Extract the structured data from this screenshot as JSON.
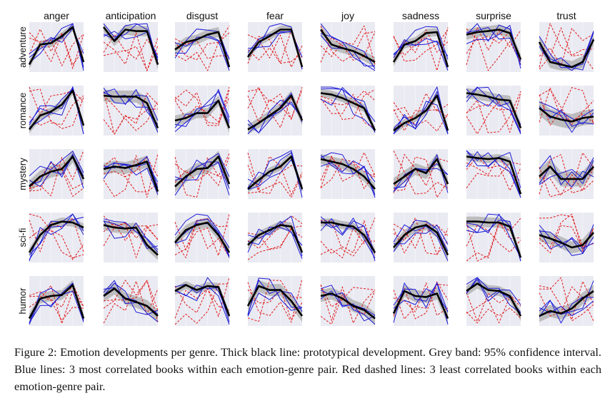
{
  "figure": {
    "caption": "Figure 2: Emotion developments per genre. Thick black line: prototypical development. Grey band: 95% confidence interval. Blue lines: 3 most correlated books within each emotion-genre pair. Red dashed lines: 3 least correlated books within each emotion-genre pair."
  },
  "colors": {
    "panel_bg": "#eaeaf2",
    "grid": "#ffffff",
    "prototype": "#000000",
    "band": "#a8a8a8",
    "most_correlated": "#1a1ad6",
    "least_correlated": "#e01a1a"
  },
  "chart_data": {
    "type": "line",
    "layout": "small-multiples",
    "columns": [
      "anger",
      "anticipation",
      "disgust",
      "fear",
      "joy",
      "sadness",
      "surprise",
      "trust"
    ],
    "rows": [
      "adventure",
      "romance",
      "mystery",
      "sci-fi",
      "humor"
    ],
    "x_points": 6,
    "ylim": [
      0,
      1
    ],
    "grid": true,
    "panels": {
      "adventure": {
        "anger": {
          "prototype": [
            0.15,
            0.55,
            0.58,
            0.72,
            0.9,
            0.2
          ],
          "ci": 0.08
        },
        "anticipation": {
          "prototype": [
            0.9,
            0.62,
            0.85,
            0.82,
            0.82,
            0.15
          ],
          "ci": 0.1
        },
        "disgust": {
          "prototype": [
            0.45,
            0.6,
            0.65,
            0.75,
            0.8,
            0.1
          ],
          "ci": 0.1
        },
        "fear": {
          "prototype": [
            0.3,
            0.6,
            0.72,
            0.85,
            0.85,
            0.1
          ],
          "ci": 0.08
        },
        "joy": {
          "prototype": [
            0.85,
            0.55,
            0.48,
            0.42,
            0.32,
            0.2
          ],
          "ci": 0.1
        },
        "sadness": {
          "prototype": [
            0.2,
            0.55,
            0.62,
            0.78,
            0.8,
            0.1
          ],
          "ci": 0.08
        },
        "surprise": {
          "prototype": [
            0.75,
            0.8,
            0.82,
            0.85,
            0.78,
            0.25
          ],
          "ci": 0.1
        },
        "trust": {
          "prototype": [
            0.6,
            0.2,
            0.15,
            0.1,
            0.2,
            0.65
          ],
          "ci": 0.12
        }
      },
      "romance": {
        "anger": {
          "prototype": [
            0.12,
            0.4,
            0.48,
            0.62,
            0.9,
            0.2
          ],
          "ci": 0.08
        },
        "anticipation": {
          "prototype": [
            0.8,
            0.78,
            0.78,
            0.78,
            0.65,
            0.15
          ],
          "ci": 0.12
        },
        "disgust": {
          "prototype": [
            0.3,
            0.35,
            0.45,
            0.45,
            0.7,
            0.15
          ],
          "ci": 0.1
        },
        "fear": {
          "prototype": [
            0.12,
            0.25,
            0.4,
            0.55,
            0.8,
            0.3
          ],
          "ci": 0.1
        },
        "joy": {
          "prototype": [
            0.85,
            0.82,
            0.75,
            0.65,
            0.55,
            0.1
          ],
          "ci": 0.08
        },
        "sadness": {
          "prototype": [
            0.1,
            0.25,
            0.35,
            0.5,
            0.8,
            0.1
          ],
          "ci": 0.08
        },
        "surprise": {
          "prototype": [
            0.85,
            0.82,
            0.78,
            0.72,
            0.7,
            0.15
          ],
          "ci": 0.1
        },
        "trust": {
          "prototype": [
            0.55,
            0.38,
            0.32,
            0.28,
            0.35,
            0.38
          ],
          "ci": 0.15
        }
      },
      "mystery": {
        "anger": {
          "prototype": [
            0.25,
            0.45,
            0.55,
            0.6,
            0.85,
            0.4
          ],
          "ci": 0.12
        },
        "anticipation": {
          "prototype": [
            0.6,
            0.65,
            0.62,
            0.68,
            0.75,
            0.15
          ],
          "ci": 0.12
        },
        "disgust": {
          "prototype": [
            0.25,
            0.45,
            0.6,
            0.62,
            0.85,
            0.3
          ],
          "ci": 0.12
        },
        "fear": {
          "prototype": [
            0.2,
            0.38,
            0.55,
            0.65,
            0.85,
            0.2
          ],
          "ci": 0.08
        },
        "joy": {
          "prototype": [
            0.8,
            0.75,
            0.7,
            0.6,
            0.45,
            0.2
          ],
          "ci": 0.1
        },
        "sadness": {
          "prototype": [
            0.3,
            0.45,
            0.6,
            0.52,
            0.8,
            0.3
          ],
          "ci": 0.12
        },
        "surprise": {
          "prototype": [
            0.85,
            0.82,
            0.8,
            0.82,
            0.75,
            0.1
          ],
          "ci": 0.08
        },
        "trust": {
          "prototype": [
            0.45,
            0.65,
            0.4,
            0.4,
            0.4,
            0.65
          ],
          "ci": 0.15
        }
      },
      "sci-fi": {
        "anger": {
          "prototype": [
            0.2,
            0.55,
            0.75,
            0.82,
            0.8,
            0.7
          ],
          "ci": 0.08
        },
        "anticipation": {
          "prototype": [
            0.75,
            0.7,
            0.68,
            0.7,
            0.35,
            0.15
          ],
          "ci": 0.1
        },
        "disgust": {
          "prototype": [
            0.4,
            0.65,
            0.75,
            0.8,
            0.55,
            0.2
          ],
          "ci": 0.1
        },
        "fear": {
          "prototype": [
            0.35,
            0.55,
            0.65,
            0.75,
            0.72,
            0.2
          ],
          "ci": 0.08
        },
        "joy": {
          "prototype": [
            0.8,
            0.8,
            0.75,
            0.72,
            0.55,
            0.2
          ],
          "ci": 0.08
        },
        "sadness": {
          "prototype": [
            0.3,
            0.55,
            0.7,
            0.75,
            0.6,
            0.15
          ],
          "ci": 0.1
        },
        "surprise": {
          "prototype": [
            0.82,
            0.82,
            0.8,
            0.8,
            0.72,
            0.1
          ],
          "ci": 0.1
        },
        "trust": {
          "prototype": [
            0.55,
            0.48,
            0.4,
            0.3,
            0.35,
            0.6
          ],
          "ci": 0.12
        }
      },
      "humor": {
        "anger": {
          "prototype": [
            0.15,
            0.55,
            0.6,
            0.62,
            0.82,
            0.15
          ],
          "ci": 0.1
        },
        "anticipation": {
          "prototype": [
            0.6,
            0.75,
            0.55,
            0.48,
            0.4,
            0.2
          ],
          "ci": 0.12
        },
        "disgust": {
          "prototype": [
            0.7,
            0.82,
            0.72,
            0.8,
            0.78,
            0.2
          ],
          "ci": 0.08
        },
        "fear": {
          "prototype": [
            0.4,
            0.8,
            0.72,
            0.72,
            0.5,
            0.2
          ],
          "ci": 0.12
        },
        "joy": {
          "prototype": [
            0.6,
            0.65,
            0.55,
            0.4,
            0.32,
            0.15
          ],
          "ci": 0.12
        },
        "sadness": {
          "prototype": [
            0.25,
            0.7,
            0.6,
            0.58,
            0.65,
            0.15
          ],
          "ci": 0.12
        },
        "surprise": {
          "prototype": [
            0.7,
            0.85,
            0.72,
            0.7,
            0.6,
            0.2
          ],
          "ci": 0.1
        },
        "trust": {
          "prototype": [
            0.2,
            0.3,
            0.25,
            0.35,
            0.55,
            0.7
          ],
          "ci": 0.12
        }
      }
    }
  }
}
